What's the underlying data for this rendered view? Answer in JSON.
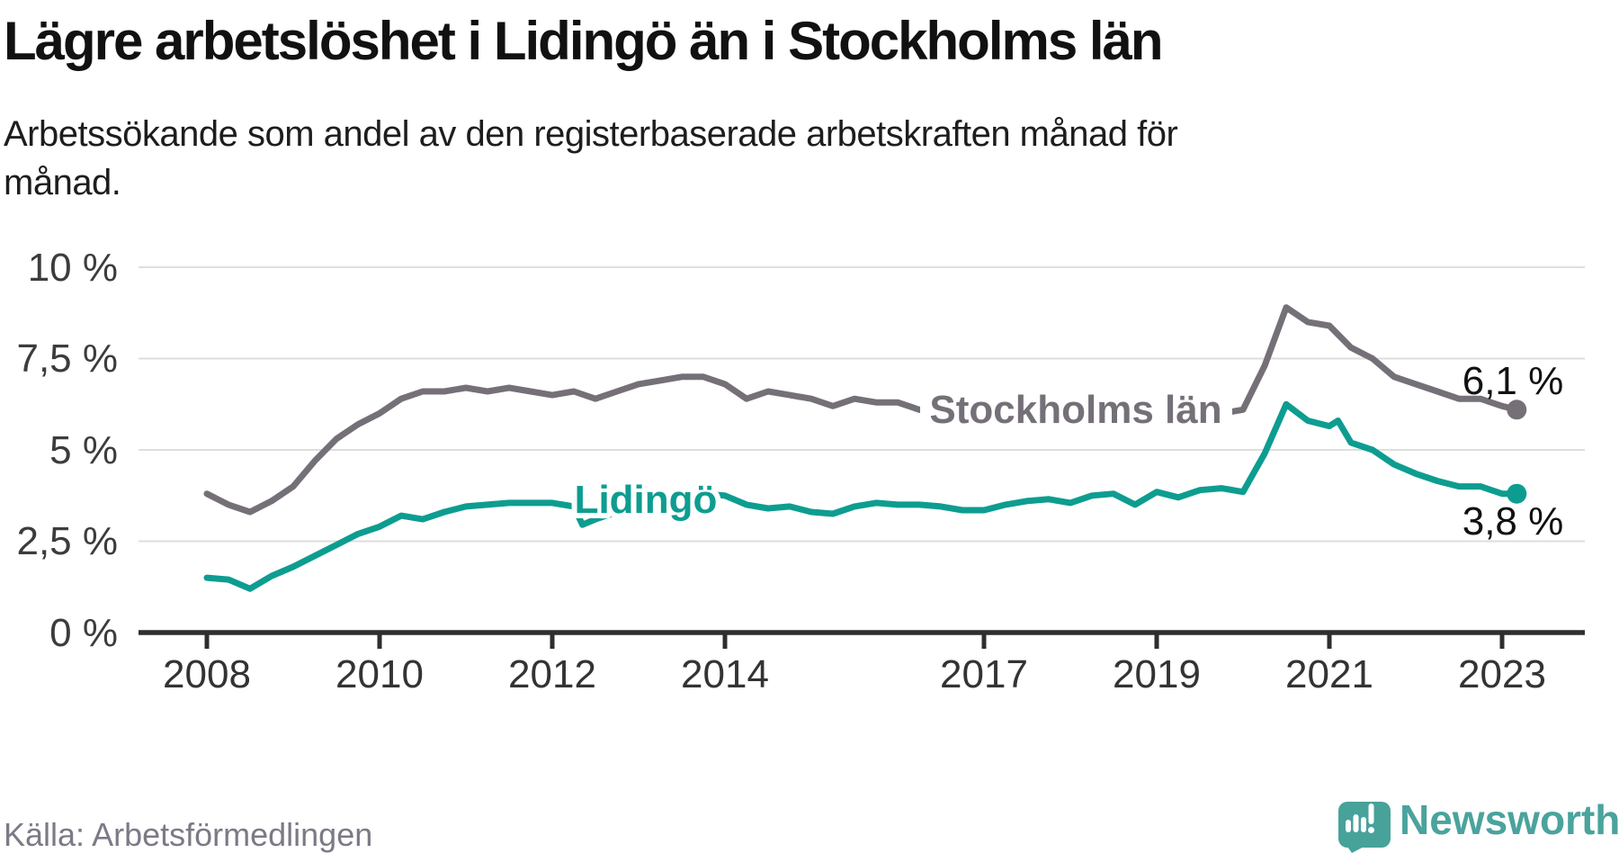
{
  "header": {
    "title": "Lägre arbetslöshet i Lidingö än i Stockholms län",
    "subtitle_line1": "Arbetssökande som andel av den registerbaserade arbetskraften månad för",
    "subtitle_line2": "månad."
  },
  "footer": {
    "source": "Källa: Arbetsförmedlingen",
    "brand": "Newsworthy"
  },
  "colors": {
    "stockholm_line": "#757078",
    "lidingo_line": "#0d9d90",
    "brand_teal": "#4aa39c",
    "grid": "#dedede",
    "axis": "#2e2e2e",
    "axis_text": "#3c3c3c",
    "source_text": "#7d7985"
  },
  "chart_data": {
    "type": "line",
    "title": "Lägre arbetslöshet i Lidingö än i Stockholms län",
    "subtitle": "Arbetssökande som andel av den registerbaserade arbetskraften månad för månad.",
    "unit": "%",
    "grid": true,
    "legend_position": "inline-line-labels",
    "xlim": [
      2008,
      2023.4
    ],
    "ylim": [
      0,
      10
    ],
    "y_tick_values": [
      10,
      7.5,
      5,
      2.5,
      0
    ],
    "y_tick_labels": [
      "10 %",
      "7,5 %",
      "5 %",
      "2,5 %",
      "0 %"
    ],
    "x_tick_values": [
      2008,
      2010,
      2012,
      2014,
      2017,
      2019,
      2021,
      2023
    ],
    "x_tick_labels": [
      "2008",
      "2010",
      "2012",
      "2014",
      "2017",
      "2019",
      "2021",
      "2023"
    ],
    "source": "Källa: Arbetsförmedlingen",
    "series": [
      {
        "name": "Stockholms län",
        "color": "#757078",
        "end_label": "6,1 %",
        "end_value": 6.1,
        "x": [
          2008.0,
          2008.25,
          2008.5,
          2008.75,
          2009.0,
          2009.25,
          2009.5,
          2009.75,
          2010.0,
          2010.25,
          2010.5,
          2010.75,
          2011.0,
          2011.25,
          2011.5,
          2011.75,
          2012.0,
          2012.25,
          2012.5,
          2012.75,
          2013.0,
          2013.25,
          2013.5,
          2013.75,
          2014.0,
          2014.25,
          2014.5,
          2014.75,
          2015.0,
          2015.25,
          2015.5,
          2015.75,
          2016.0,
          2016.25,
          2016.5,
          2016.75,
          2017.0,
          2017.25,
          2017.5,
          2017.75,
          2018.0,
          2018.25,
          2018.5,
          2018.75,
          2019.0,
          2019.25,
          2019.5,
          2019.75,
          2020.0,
          2020.25,
          2020.5,
          2020.75,
          2021.0,
          2021.25,
          2021.5,
          2021.75,
          2022.0,
          2022.25,
          2022.5,
          2022.75,
          2023.0,
          2023.17
        ],
        "values": [
          3.8,
          3.5,
          3.3,
          3.6,
          4.0,
          4.7,
          5.3,
          5.7,
          6.0,
          6.4,
          6.6,
          6.6,
          6.7,
          6.6,
          6.7,
          6.6,
          6.5,
          6.6,
          6.4,
          6.6,
          6.8,
          6.9,
          7.0,
          7.0,
          6.8,
          6.4,
          6.6,
          6.5,
          6.4,
          6.2,
          6.4,
          6.3,
          6.3,
          6.1,
          6.0,
          6.0,
          6.0,
          6.0,
          6.0,
          6.0,
          6.0,
          6.0,
          6.0,
          6.0,
          6.0,
          6.0,
          6.0,
          6.0,
          6.1,
          7.3,
          8.9,
          8.5,
          8.4,
          7.8,
          7.5,
          7.0,
          6.8,
          6.6,
          6.4,
          6.4,
          6.2,
          6.1
        ]
      },
      {
        "name": "Lidingö",
        "color": "#0d9d90",
        "end_label": "3,8 %",
        "end_value": 3.8,
        "x": [
          2008.0,
          2008.25,
          2008.5,
          2008.75,
          2009.0,
          2009.25,
          2009.5,
          2009.75,
          2010.0,
          2010.25,
          2010.5,
          2010.75,
          2011.0,
          2011.25,
          2011.5,
          2011.75,
          2012.0,
          2012.25,
          2012.35,
          2012.5,
          2012.75,
          2013.0,
          2013.25,
          2013.5,
          2013.75,
          2014.0,
          2014.25,
          2014.5,
          2014.75,
          2015.0,
          2015.25,
          2015.5,
          2015.75,
          2016.0,
          2016.25,
          2016.5,
          2016.75,
          2017.0,
          2017.25,
          2017.5,
          2017.75,
          2018.0,
          2018.25,
          2018.5,
          2018.75,
          2019.0,
          2019.25,
          2019.5,
          2019.75,
          2020.0,
          2020.25,
          2020.5,
          2020.75,
          2021.0,
          2021.1,
          2021.25,
          2021.5,
          2021.75,
          2022.0,
          2022.25,
          2022.5,
          2022.75,
          2023.0,
          2023.17
        ],
        "values": [
          1.5,
          1.45,
          1.2,
          1.55,
          1.8,
          2.1,
          2.4,
          2.7,
          2.9,
          3.2,
          3.1,
          3.3,
          3.45,
          3.5,
          3.55,
          3.55,
          3.55,
          3.45,
          2.95,
          3.1,
          3.3,
          3.45,
          3.55,
          3.65,
          3.8,
          3.75,
          3.5,
          3.4,
          3.45,
          3.3,
          3.25,
          3.45,
          3.55,
          3.5,
          3.5,
          3.45,
          3.35,
          3.35,
          3.5,
          3.6,
          3.65,
          3.55,
          3.75,
          3.8,
          3.5,
          3.85,
          3.7,
          3.9,
          3.95,
          3.85,
          4.9,
          6.25,
          5.8,
          5.65,
          5.8,
          5.2,
          5.0,
          4.6,
          4.35,
          4.15,
          4.0,
          4.0,
          3.8,
          3.8
        ]
      }
    ]
  }
}
